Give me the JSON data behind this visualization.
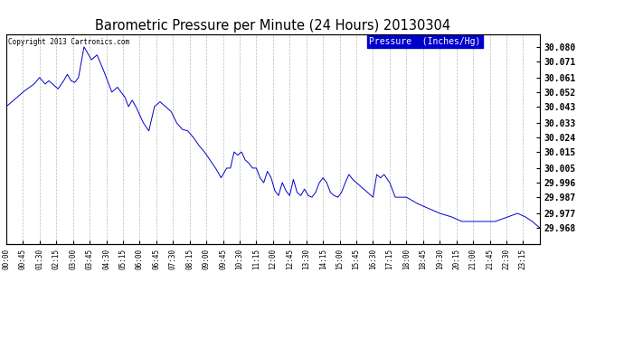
{
  "title": "Barometric Pressure per Minute (24 Hours) 20130304",
  "copyright": "Copyright 2013 Cartronics.com",
  "legend_label": "Pressure  (Inches/Hg)",
  "line_color": "#0000cc",
  "background_color": "#ffffff",
  "grid_color": "#aaaaaa",
  "y_ticks": [
    29.968,
    29.977,
    29.987,
    29.996,
    30.005,
    30.015,
    30.024,
    30.033,
    30.043,
    30.052,
    30.061,
    30.071,
    30.08
  ],
  "ylim_min": 29.958,
  "ylim_max": 30.088,
  "x_tick_labels": [
    "00:00",
    "00:45",
    "01:30",
    "02:15",
    "03:00",
    "03:45",
    "04:30",
    "05:15",
    "06:00",
    "06:45",
    "07:30",
    "08:15",
    "09:00",
    "09:45",
    "10:30",
    "11:15",
    "12:00",
    "12:45",
    "13:30",
    "14:15",
    "15:00",
    "15:45",
    "16:30",
    "17:15",
    "18:00",
    "18:45",
    "19:30",
    "20:15",
    "21:00",
    "21:45",
    "22:30",
    "23:15"
  ],
  "pressure_keypoints": [
    [
      0,
      30.043
    ],
    [
      45,
      30.052
    ],
    [
      75,
      30.057
    ],
    [
      90,
      30.061
    ],
    [
      105,
      30.057
    ],
    [
      115,
      30.059
    ],
    [
      125,
      30.057
    ],
    [
      140,
      30.054
    ],
    [
      155,
      30.059
    ],
    [
      165,
      30.063
    ],
    [
      175,
      30.059
    ],
    [
      185,
      30.058
    ],
    [
      195,
      30.061
    ],
    [
      210,
      30.08
    ],
    [
      230,
      30.072
    ],
    [
      245,
      30.075
    ],
    [
      260,
      30.067
    ],
    [
      270,
      30.061
    ],
    [
      285,
      30.052
    ],
    [
      300,
      30.055
    ],
    [
      310,
      30.052
    ],
    [
      320,
      30.049
    ],
    [
      330,
      30.043
    ],
    [
      340,
      30.047
    ],
    [
      350,
      30.043
    ],
    [
      370,
      30.033
    ],
    [
      385,
      30.028
    ],
    [
      400,
      30.043
    ],
    [
      415,
      30.046
    ],
    [
      430,
      30.043
    ],
    [
      445,
      30.04
    ],
    [
      460,
      30.033
    ],
    [
      475,
      30.029
    ],
    [
      490,
      30.028
    ],
    [
      505,
      30.024
    ],
    [
      520,
      30.019
    ],
    [
      535,
      30.015
    ],
    [
      550,
      30.01
    ],
    [
      565,
      30.005
    ],
    [
      580,
      29.999
    ],
    [
      595,
      30.005
    ],
    [
      605,
      30.005
    ],
    [
      615,
      30.015
    ],
    [
      625,
      30.013
    ],
    [
      635,
      30.015
    ],
    [
      645,
      30.01
    ],
    [
      655,
      30.008
    ],
    [
      665,
      30.005
    ],
    [
      675,
      30.005
    ],
    [
      685,
      29.999
    ],
    [
      695,
      29.996
    ],
    [
      705,
      30.003
    ],
    [
      715,
      29.999
    ],
    [
      725,
      29.991
    ],
    [
      735,
      29.988
    ],
    [
      745,
      29.996
    ],
    [
      755,
      29.991
    ],
    [
      765,
      29.988
    ],
    [
      775,
      29.998
    ],
    [
      785,
      29.99
    ],
    [
      795,
      29.988
    ],
    [
      805,
      29.992
    ],
    [
      815,
      29.988
    ],
    [
      825,
      29.987
    ],
    [
      835,
      29.99
    ],
    [
      845,
      29.996
    ],
    [
      855,
      29.999
    ],
    [
      865,
      29.996
    ],
    [
      875,
      29.99
    ],
    [
      885,
      29.988
    ],
    [
      895,
      29.987
    ],
    [
      905,
      29.99
    ],
    [
      915,
      29.996
    ],
    [
      925,
      30.001
    ],
    [
      935,
      29.998
    ],
    [
      945,
      29.996
    ],
    [
      960,
      29.993
    ],
    [
      975,
      29.99
    ],
    [
      990,
      29.987
    ],
    [
      1000,
      30.001
    ],
    [
      1010,
      29.999
    ],
    [
      1020,
      30.001
    ],
    [
      1035,
      29.996
    ],
    [
      1050,
      29.987
    ],
    [
      1080,
      29.987
    ],
    [
      1110,
      29.983
    ],
    [
      1140,
      29.98
    ],
    [
      1170,
      29.977
    ],
    [
      1200,
      29.975
    ],
    [
      1230,
      29.972
    ],
    [
      1320,
      29.972
    ],
    [
      1380,
      29.977
    ],
    [
      1400,
      29.975
    ],
    [
      1420,
      29.972
    ],
    [
      1440,
      29.968
    ]
  ]
}
